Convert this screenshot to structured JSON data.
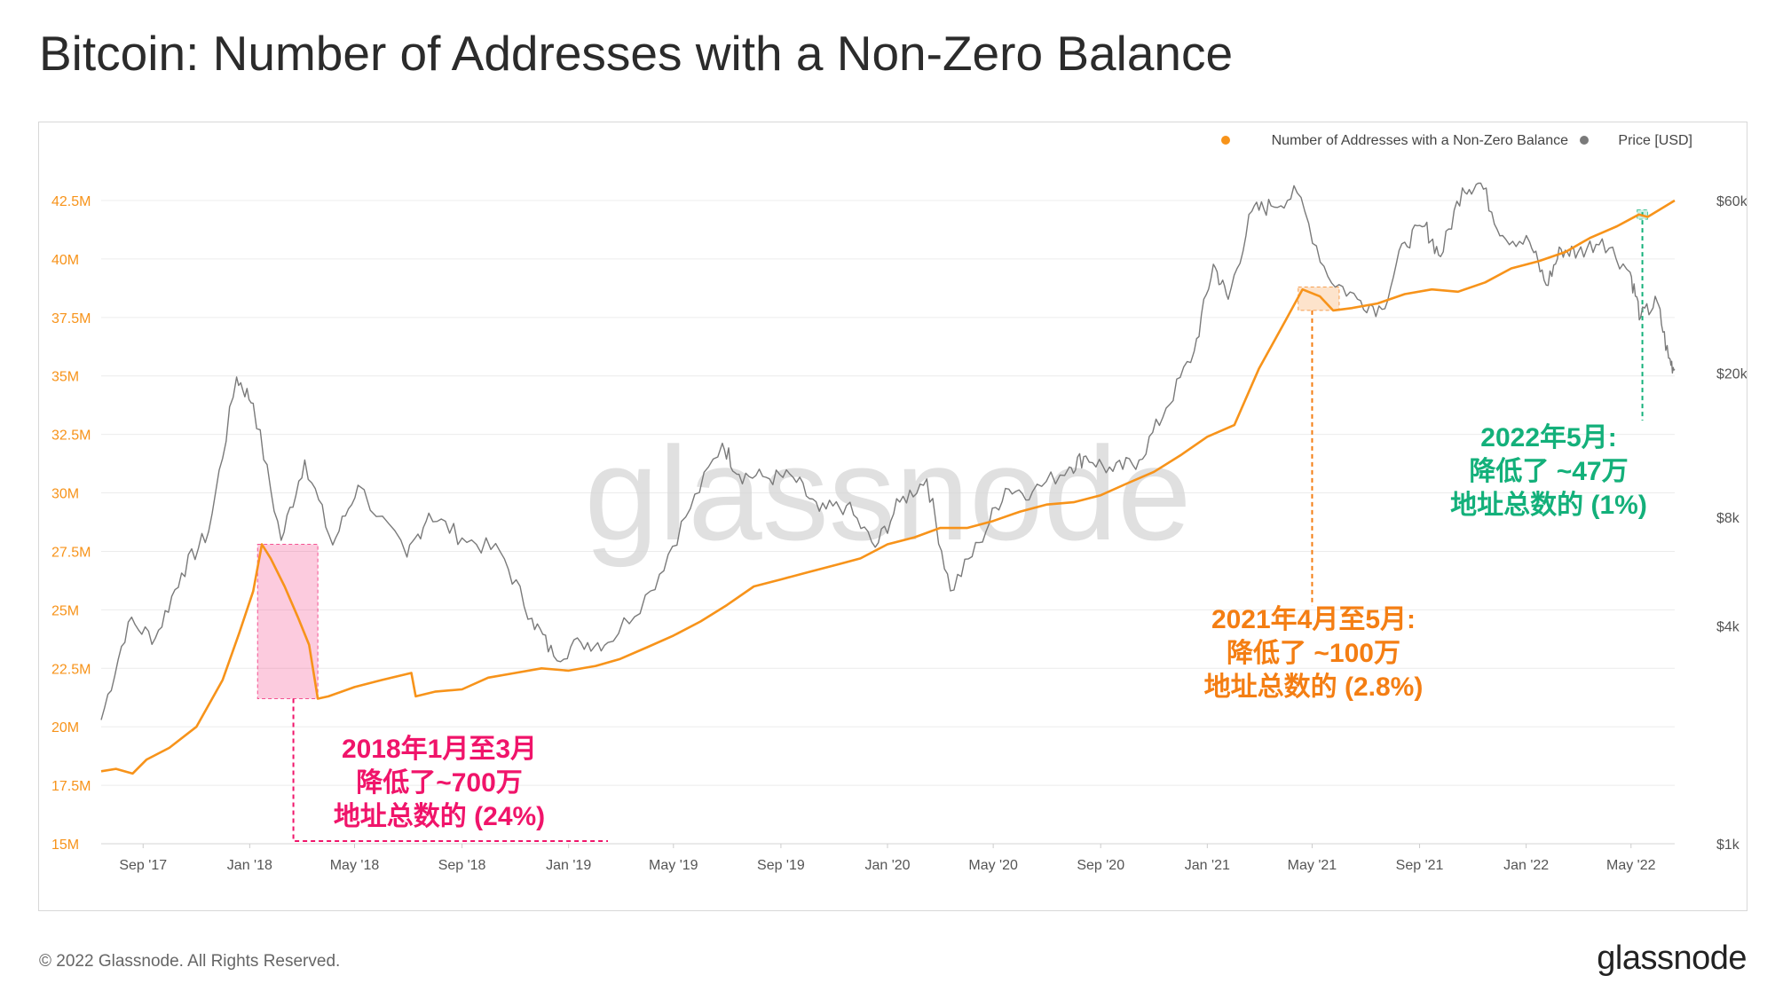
{
  "title": "Bitcoin: Number of Addresses with a Non-Zero Balance",
  "footer": {
    "copyright": "© 2022 Glassnode. All Rights Reserved.",
    "brand": "glassnode"
  },
  "watermark": "glassnode",
  "colors": {
    "addresses": "#f7931a",
    "price": "#7a7a7a",
    "ann_2018": "#f0146a",
    "ann_2021": "#f47e13",
    "ann_2022": "#13b07a",
    "axis_text": "#f7931a",
    "price_axis_text": "#555555"
  },
  "annotations": [
    {
      "id": "2018",
      "lines": [
        "2018年1月至3月",
        "降低了~700万",
        "地址总数的 (24%)"
      ]
    },
    {
      "id": "2021",
      "lines": [
        "2021年4月至5月:",
        "降低了 ~100万",
        "地址总数的 (2.8%)"
      ]
    },
    {
      "id": "2022",
      "lines": [
        "2022年5月:",
        "降低了 ~47万",
        "地址总数的 (1%)"
      ]
    }
  ],
  "chart_data": {
    "type": "line",
    "legend": {
      "position": "top-right",
      "entries": [
        "Number of Addresses with a Non-Zero Balance",
        "Price [USD]"
      ]
    },
    "x_ticks": [
      "Sep '17",
      "Jan '18",
      "May '18",
      "Sep '18",
      "Jan '19",
      "May '19",
      "Sep '19",
      "Jan '20",
      "May '20",
      "Sep '20",
      "Jan '21",
      "May '21",
      "Sep '21",
      "Jan '22",
      "May '22"
    ],
    "x_range": [
      "2017-07-15",
      "2022-06-20"
    ],
    "y_left": {
      "ticks": [
        "15M",
        "17.5M",
        "20M",
        "22.5M",
        "25M",
        "27.5M",
        "30M",
        "32.5M",
        "35M",
        "37.5M",
        "40M",
        "42.5M"
      ],
      "range_millions": [
        15,
        42.5
      ],
      "scale": "linear"
    },
    "y_right": {
      "ticks": [
        "$1k",
        "$4k",
        "$8k",
        "$20k",
        "$60k"
      ],
      "tick_values": [
        1000,
        4000,
        8000,
        20000,
        60000
      ],
      "scale": "log",
      "range_usd": [
        1000,
        60000
      ]
    },
    "series": [
      {
        "name": "Number of Addresses with a Non-Zero Balance",
        "unit": "millions",
        "axis": "left",
        "points": [
          [
            "2017-07-15",
            18.1
          ],
          [
            "2017-08-01",
            18.2
          ],
          [
            "2017-08-20",
            18.0
          ],
          [
            "2017-09-05",
            18.6
          ],
          [
            "2017-10-01",
            19.1
          ],
          [
            "2017-11-01",
            20.0
          ],
          [
            "2017-12-01",
            22.0
          ],
          [
            "2017-12-20",
            24.0
          ],
          [
            "2018-01-05",
            25.8
          ],
          [
            "2018-01-15",
            27.8
          ],
          [
            "2018-01-25",
            27.2
          ],
          [
            "2018-02-10",
            26.0
          ],
          [
            "2018-02-25",
            24.7
          ],
          [
            "2018-03-10",
            23.5
          ],
          [
            "2018-03-20",
            21.2
          ],
          [
            "2018-04-01",
            21.3
          ],
          [
            "2018-05-01",
            21.7
          ],
          [
            "2018-06-01",
            22.0
          ],
          [
            "2018-07-05",
            22.3
          ],
          [
            "2018-07-10",
            21.3
          ],
          [
            "2018-08-01",
            21.5
          ],
          [
            "2018-09-01",
            21.6
          ],
          [
            "2018-10-01",
            22.1
          ],
          [
            "2018-11-01",
            22.3
          ],
          [
            "2018-12-01",
            22.5
          ],
          [
            "2019-01-01",
            22.4
          ],
          [
            "2019-02-01",
            22.6
          ],
          [
            "2019-03-01",
            22.9
          ],
          [
            "2019-04-01",
            23.4
          ],
          [
            "2019-05-01",
            23.9
          ],
          [
            "2019-06-01",
            24.5
          ],
          [
            "2019-07-01",
            25.2
          ],
          [
            "2019-08-01",
            26.0
          ],
          [
            "2019-09-01",
            26.3
          ],
          [
            "2019-10-01",
            26.6
          ],
          [
            "2019-11-01",
            26.9
          ],
          [
            "2019-12-01",
            27.2
          ],
          [
            "2020-01-01",
            27.8
          ],
          [
            "2020-02-01",
            28.1
          ],
          [
            "2020-03-01",
            28.5
          ],
          [
            "2020-04-01",
            28.5
          ],
          [
            "2020-05-01",
            28.8
          ],
          [
            "2020-06-01",
            29.2
          ],
          [
            "2020-07-01",
            29.5
          ],
          [
            "2020-08-01",
            29.6
          ],
          [
            "2020-09-01",
            29.9
          ],
          [
            "2020-10-01",
            30.4
          ],
          [
            "2020-11-01",
            30.9
          ],
          [
            "2020-12-01",
            31.6
          ],
          [
            "2021-01-01",
            32.4
          ],
          [
            "2021-02-01",
            32.9
          ],
          [
            "2021-03-01",
            35.3
          ],
          [
            "2021-04-01",
            37.4
          ],
          [
            "2021-04-20",
            38.7
          ],
          [
            "2021-05-10",
            38.4
          ],
          [
            "2021-05-25",
            37.8
          ],
          [
            "2021-06-15",
            37.9
          ],
          [
            "2021-07-15",
            38.1
          ],
          [
            "2021-08-15",
            38.5
          ],
          [
            "2021-09-15",
            38.7
          ],
          [
            "2021-10-15",
            38.6
          ],
          [
            "2021-11-15",
            39.0
          ],
          [
            "2021-12-15",
            39.6
          ],
          [
            "2022-01-15",
            39.9
          ],
          [
            "2022-02-15",
            40.3
          ],
          [
            "2022-03-15",
            40.9
          ],
          [
            "2022-04-15",
            41.4
          ],
          [
            "2022-05-10",
            41.9
          ],
          [
            "2022-05-20",
            41.8
          ],
          [
            "2022-06-20",
            42.5
          ]
        ]
      },
      {
        "name": "Price [USD]",
        "unit": "USD",
        "axis": "right",
        "points": [
          [
            "2017-07-15",
            2200
          ],
          [
            "2017-08-15",
            4100
          ],
          [
            "2017-09-15",
            3700
          ],
          [
            "2017-10-15",
            5600
          ],
          [
            "2017-11-15",
            7300
          ],
          [
            "2017-12-17",
            19500
          ],
          [
            "2018-01-05",
            16500
          ],
          [
            "2018-02-06",
            6900
          ],
          [
            "2018-03-05",
            11500
          ],
          [
            "2018-04-06",
            6700
          ],
          [
            "2018-05-05",
            9800
          ],
          [
            "2018-06-30",
            6200
          ],
          [
            "2018-07-25",
            8200
          ],
          [
            "2018-09-01",
            7000
          ],
          [
            "2018-10-15",
            6400
          ],
          [
            "2018-11-20",
            4200
          ],
          [
            "2018-12-15",
            3300
          ],
          [
            "2019-01-15",
            3600
          ],
          [
            "2019-02-15",
            3600
          ],
          [
            "2019-04-05",
            5000
          ],
          [
            "2019-05-15",
            8000
          ],
          [
            "2019-06-26",
            12800
          ],
          [
            "2019-07-15",
            10500
          ],
          [
            "2019-08-15",
            10300
          ],
          [
            "2019-09-15",
            10300
          ],
          [
            "2019-10-15",
            8300
          ],
          [
            "2019-11-15",
            8600
          ],
          [
            "2019-12-18",
            6600
          ],
          [
            "2020-01-15",
            8800
          ],
          [
            "2020-02-15",
            10200
          ],
          [
            "2020-03-13",
            5000
          ],
          [
            "2020-04-15",
            6800
          ],
          [
            "2020-05-15",
            9600
          ],
          [
            "2020-06-15",
            9400
          ],
          [
            "2020-07-27",
            11000
          ],
          [
            "2020-08-15",
            11800
          ],
          [
            "2020-09-15",
            10700
          ],
          [
            "2020-10-15",
            11500
          ],
          [
            "2020-11-15",
            16000
          ],
          [
            "2020-12-17",
            23000
          ],
          [
            "2021-01-08",
            40000
          ],
          [
            "2021-01-25",
            32000
          ],
          [
            "2021-02-21",
            56000
          ],
          [
            "2021-03-15",
            58000
          ],
          [
            "2021-04-14",
            63000
          ],
          [
            "2021-05-19",
            37000
          ],
          [
            "2021-06-22",
            32000
          ],
          [
            "2021-07-20",
            30000
          ],
          [
            "2021-08-15",
            46000
          ],
          [
            "2021-09-07",
            51000
          ],
          [
            "2021-09-25",
            42000
          ],
          [
            "2021-10-20",
            65000
          ],
          [
            "2021-11-10",
            67000
          ],
          [
            "2021-12-05",
            48000
          ],
          [
            "2022-01-05",
            46000
          ],
          [
            "2022-01-24",
            35000
          ],
          [
            "2022-02-10",
            44000
          ],
          [
            "2022-03-01",
            43000
          ],
          [
            "2022-03-29",
            47000
          ],
          [
            "2022-04-30",
            38000
          ],
          [
            "2022-05-12",
            28500
          ],
          [
            "2022-05-31",
            31500
          ],
          [
            "2022-06-13",
            22000
          ],
          [
            "2022-06-20",
            20500
          ]
        ]
      }
    ],
    "highlights": [
      {
        "from": "2018-01-10",
        "to": "2018-03-20",
        "y_from": 21.2,
        "y_to": 27.8,
        "color": "#f0146a"
      },
      {
        "from": "2021-04-15",
        "to": "2021-06-01",
        "y_from": 37.8,
        "y_to": 38.8,
        "color": "#f47e13"
      },
      {
        "from": "2022-05-08",
        "to": "2022-05-20",
        "y_from": 41.7,
        "y_to": 42.1,
        "color": "#13b07a"
      }
    ]
  }
}
